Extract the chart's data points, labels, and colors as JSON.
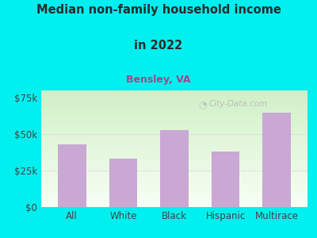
{
  "title_line1": "Median non-family household income",
  "title_line2": "in 2022",
  "subtitle": "Bensley, VA",
  "categories": [
    "All",
    "White",
    "Black",
    "Hispanic",
    "Multirace"
  ],
  "values": [
    43000,
    33000,
    53000,
    38000,
    65000
  ],
  "bar_color": "#c9a8d4",
  "background_outer": "#00f0f0",
  "background_inner_top": "#d8f0d0",
  "background_inner_bottom": "#f8fef4",
  "title_color": "#2a2a2a",
  "subtitle_color": "#aa4488",
  "tick_color": "#444444",
  "yticks": [
    0,
    25000,
    50000,
    75000
  ],
  "ytick_labels": [
    "$0",
    "$25k",
    "$50k",
    "$75k"
  ],
  "ylim": [
    0,
    80000
  ],
  "watermark": "City-Data.com",
  "title_fontsize": 10.5,
  "subtitle_fontsize": 9.0
}
